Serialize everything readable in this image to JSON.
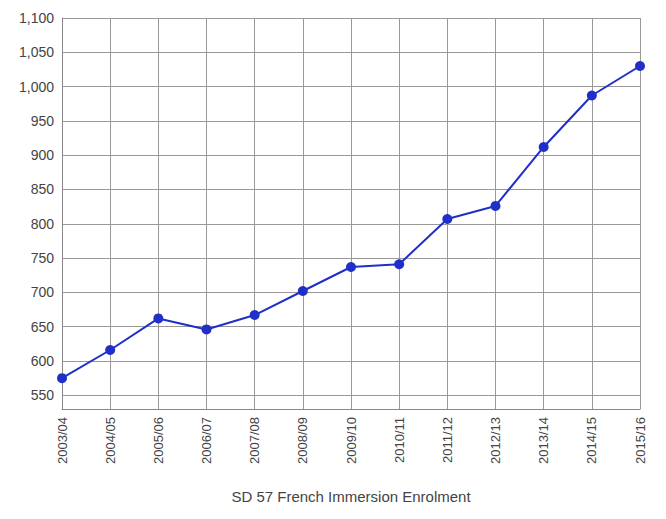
{
  "chart_data": {
    "type": "line",
    "x_label": "SD 57 French Immersion Enrolment",
    "categories": [
      "2003/04",
      "2004/05",
      "2005/06",
      "2006/07",
      "2007/08",
      "2008/09",
      "2009/10",
      "2010/11",
      "2011/12",
      "2012/13",
      "2013/14",
      "2014/15",
      "2015/16"
    ],
    "values": [
      575,
      616,
      662,
      646,
      667,
      702,
      737,
      741,
      807,
      826,
      912,
      987,
      1030
    ],
    "color": "#1f2fc7",
    "marker": "circle",
    "ylim": [
      530,
      1100
    ],
    "yticks": [
      550,
      600,
      650,
      700,
      750,
      800,
      850,
      900,
      950,
      1000,
      1050,
      1100
    ],
    "grid": true
  }
}
